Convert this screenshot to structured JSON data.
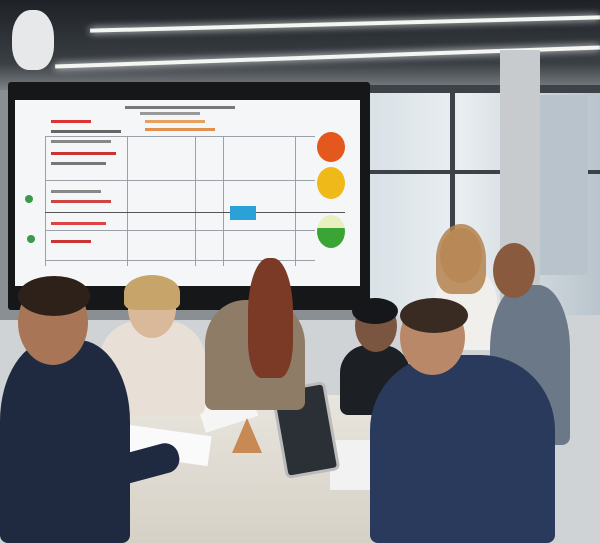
{
  "scene": {
    "description_tag": "office-meeting",
    "colors": {
      "traffic_light_red": "#e4571d",
      "traffic_light_yellow": "#f0b91a",
      "traffic_light_green": "#3aa535",
      "chart_blue_block": "#2aa2d8",
      "suit_navy": "#2a3a5c"
    }
  }
}
